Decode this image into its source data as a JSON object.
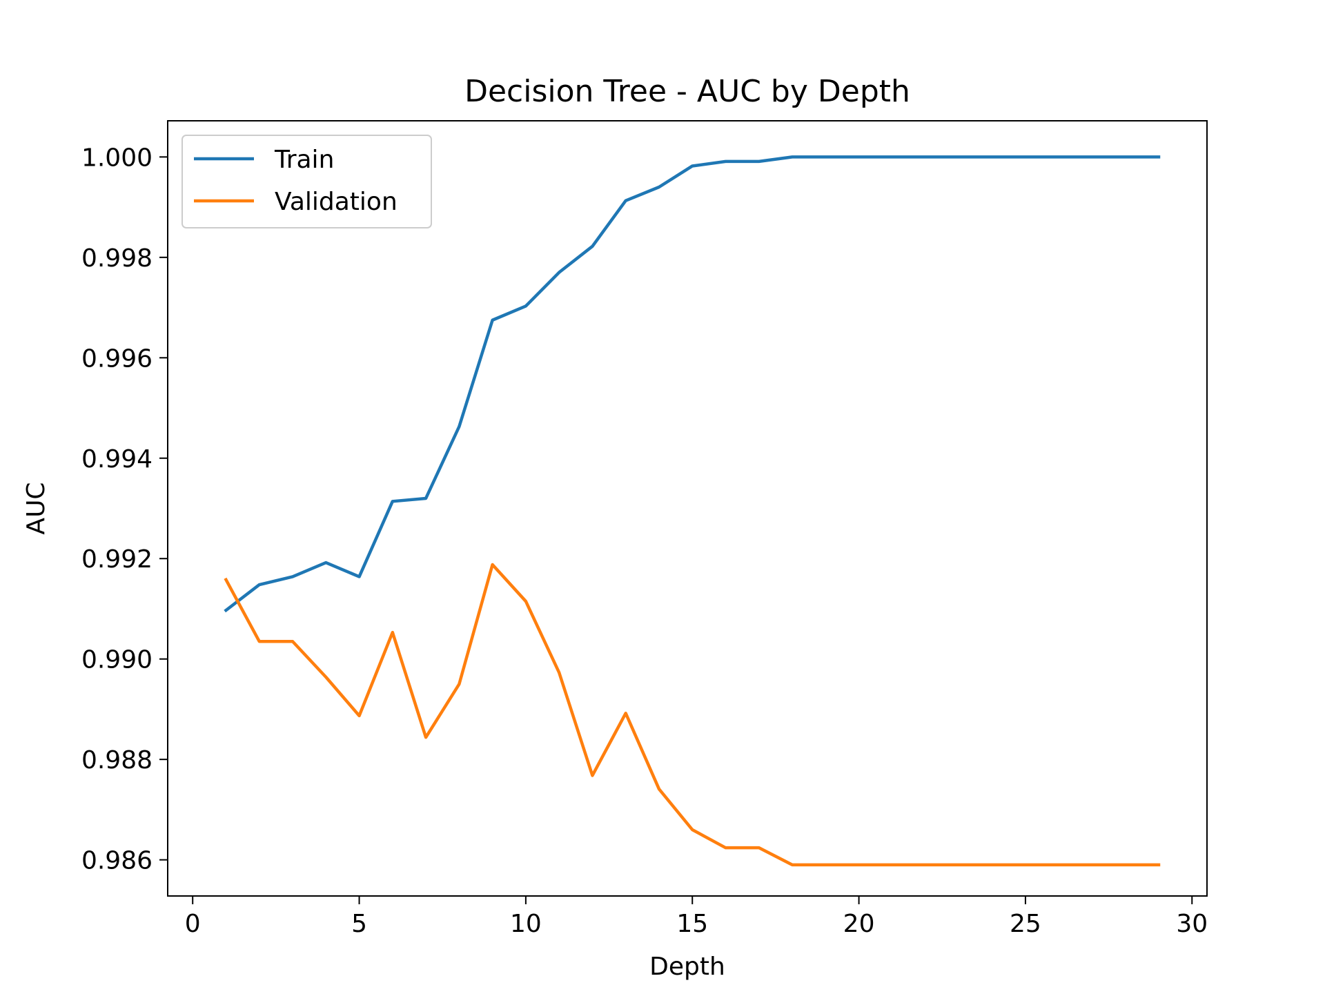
{
  "chart_data": {
    "type": "line",
    "title": "Decision Tree - AUC by Depth",
    "xlabel": "Depth",
    "ylabel": "AUC",
    "xlim": [
      -0.75,
      30.45
    ],
    "ylim": [
      0.98528,
      1.00072
    ],
    "xticks": [
      0,
      5,
      10,
      15,
      20,
      25,
      30
    ],
    "xtick_labels": [
      "0",
      "5",
      "10",
      "15",
      "20",
      "25",
      "30"
    ],
    "yticks": [
      0.986,
      0.988,
      0.99,
      0.992,
      0.994,
      0.996,
      0.998,
      1.0
    ],
    "ytick_labels": [
      "0.986",
      "0.988",
      "0.990",
      "0.992",
      "0.994",
      "0.996",
      "0.998",
      "1.000"
    ],
    "grid": false,
    "legend_position": "upper-left",
    "x": [
      1,
      2,
      3,
      4,
      5,
      6,
      7,
      8,
      9,
      10,
      11,
      12,
      13,
      14,
      15,
      16,
      17,
      18,
      19,
      20,
      21,
      22,
      23,
      24,
      25,
      26,
      27,
      28,
      29
    ],
    "series": [
      {
        "name": "Train",
        "color": "#1f77b4",
        "values": [
          0.99097,
          0.99148,
          0.99164,
          0.99192,
          0.99164,
          0.99314,
          0.9932,
          0.99463,
          0.99675,
          0.99703,
          0.9977,
          0.99822,
          0.99913,
          0.9994,
          0.99982,
          0.99991,
          0.99991,
          1.0,
          1.0,
          1.0,
          1.0,
          1.0,
          1.0,
          1.0,
          1.0,
          1.0,
          1.0,
          1.0,
          1.0
        ]
      },
      {
        "name": "Validation",
        "color": "#ff7f0e",
        "values": [
          0.99158,
          0.99035,
          0.99035,
          0.98964,
          0.98887,
          0.99053,
          0.98844,
          0.9895,
          0.99188,
          0.99115,
          0.98973,
          0.98768,
          0.98892,
          0.98741,
          0.9866,
          0.98624,
          0.98624,
          0.9859,
          0.9859,
          0.9859,
          0.9859,
          0.9859,
          0.9859,
          0.9859,
          0.9859,
          0.9859,
          0.9859,
          0.9859,
          0.9859
        ]
      }
    ]
  }
}
